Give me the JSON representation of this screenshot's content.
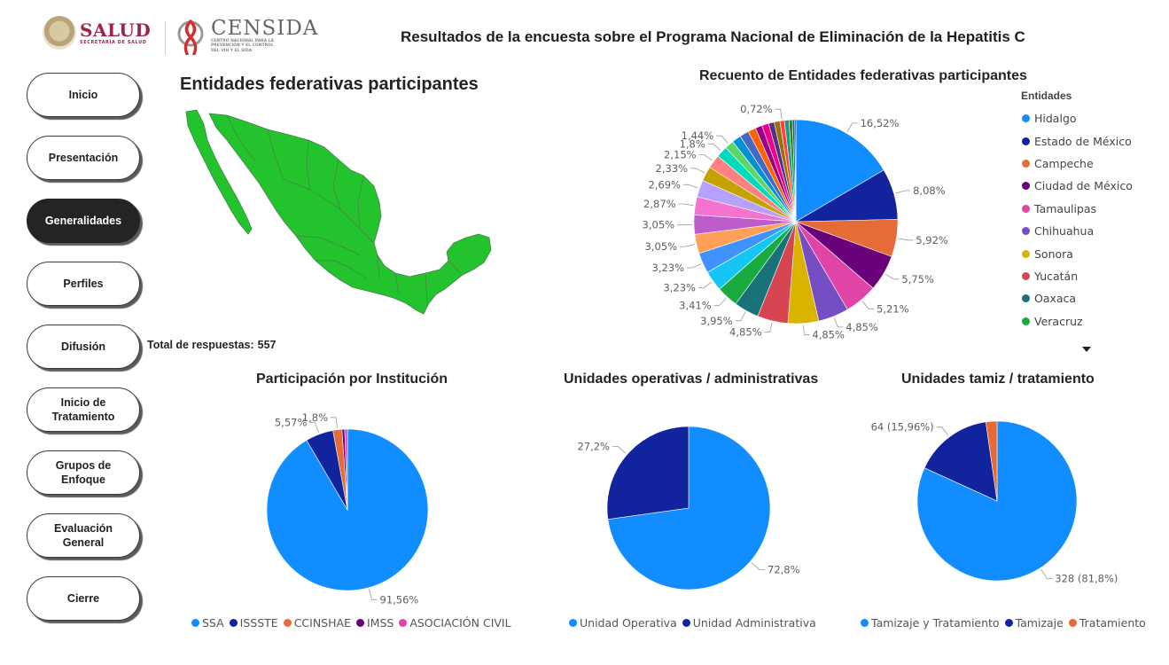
{
  "header": {
    "salud_logo": "SALUD",
    "salud_sub": "SECRETARÍA DE SALUD",
    "censida_logo": "CENSIDA",
    "censida_sub": "CENTRO NACIONAL PARA LA PREVENCIÓN Y EL CONTROL DEL VIH Y EL SIDA",
    "title": "Resultados de la encuesta sobre el Programa Nacional de Eliminación de la Hepatitis C"
  },
  "nav": {
    "items": [
      {
        "label": "Inicio",
        "active": false
      },
      {
        "label": "Presentación",
        "active": false
      },
      {
        "label": "Generalidades",
        "active": true
      },
      {
        "label": "Perfiles",
        "active": false
      },
      {
        "label": "Difusión",
        "active": false
      },
      {
        "label": "Inicio de Tratamiento",
        "active": false
      },
      {
        "label": "Grupos de Enfoque",
        "active": false
      },
      {
        "label": "Evaluación General",
        "active": false
      },
      {
        "label": "Cierre",
        "active": false
      }
    ]
  },
  "map": {
    "title": "Entidades federativas participantes",
    "fill_color": "#22c32c"
  },
  "total": {
    "label": "Total de respuestas:",
    "value": "557"
  },
  "chart_data": [
    {
      "type": "pie",
      "title": "Recuento de Entidades federativas participantes",
      "legend_title": "Entidades",
      "legend_visible": [
        "Hidalgo",
        "Estado de México",
        "Campeche",
        "Ciudad de México",
        "Tamaulipas",
        "Chihuahua",
        "Sonora",
        "Yucatán",
        "Oaxaca",
        "Veracruz"
      ],
      "categories": [
        "Hidalgo",
        "Estado de México",
        "Campeche",
        "Ciudad de México",
        "Tamaulipas",
        "Chihuahua",
        "Sonora",
        "Yucatán",
        "Oaxaca",
        "Veracruz",
        "",
        "",
        "",
        "",
        "",
        "",
        "",
        "",
        "",
        "",
        "",
        "",
        "",
        "",
        "",
        "",
        "",
        "",
        "",
        "",
        "",
        ""
      ],
      "values": [
        16.52,
        8.08,
        5.92,
        5.75,
        5.21,
        4.85,
        4.85,
        4.85,
        3.95,
        3.41,
        3.23,
        3.23,
        3.05,
        3.05,
        2.87,
        2.69,
        2.33,
        2.15,
        1.8,
        1.44,
        1.44,
        1.44,
        1.26,
        1.08,
        1.08,
        0.9,
        0.9,
        0.72,
        0.72,
        0.54,
        0.36,
        0.18
      ],
      "labels": [
        "16,52%",
        "8,08%",
        "5,92%",
        "5,75%",
        "5,21%",
        "4,85%",
        "4,85%",
        "4,85%",
        "3,95%",
        "3,41%",
        "3,23%",
        "3,23%",
        "3,05%",
        "3,05%",
        "2,87%",
        "2,69%",
        "2,33%",
        "2,15%",
        "1,8%",
        "1,44%",
        "",
        "",
        "",
        "",
        "",
        "",
        "",
        "0,72%",
        "",
        "",
        "",
        ""
      ],
      "colors": [
        "#118dff",
        "#12239e",
        "#e66c37",
        "#6b007b",
        "#e044a7",
        "#744ec2",
        "#d9b300",
        "#d64550",
        "#197278",
        "#1aab40",
        "#15c6f4",
        "#4092ff",
        "#ffa058",
        "#be5dc9",
        "#f472d0",
        "#b5a1ff",
        "#c4a200",
        "#ff8080",
        "#00dbbc",
        "#5bd667",
        "#0091d5",
        "#4668c5",
        "#ff6300",
        "#99008a",
        "#ec008c",
        "#533285",
        "#99700a",
        "#ff4141",
        "#1f9a85",
        "#25891c",
        "#0057a2",
        "#002050"
      ]
    },
    {
      "type": "pie",
      "title": "Participación por Institución",
      "categories": [
        "SSA",
        "ISSSTE",
        "CCINSHAE",
        "IMSS",
        "ASOCIACIÓN CIVIL"
      ],
      "values": [
        91.56,
        5.57,
        1.8,
        0.54,
        0.54
      ],
      "labels": [
        "91,56%",
        "5,57%",
        "1,8%",
        "",
        ""
      ],
      "colors": [
        "#118dff",
        "#12239e",
        "#e66c37",
        "#6b007b",
        "#e044a7"
      ]
    },
    {
      "type": "pie",
      "title": "Unidades operativas / administrativas",
      "categories": [
        "Unidad Operativa",
        "Unidad Administrativa"
      ],
      "values": [
        72.8,
        27.2
      ],
      "labels": [
        "72,8%",
        "27,2%"
      ],
      "colors": [
        "#118dff",
        "#12239e"
      ]
    },
    {
      "type": "pie",
      "title": "Unidades tamiz / tratamiento",
      "categories": [
        "Tamizaje y Tratamiento",
        "Tamizaje",
        "Tratamiento"
      ],
      "values": [
        81.8,
        15.96,
        2.24
      ],
      "labels": [
        "328 (81,8%)",
        "64 (15,96%)",
        ""
      ],
      "colors": [
        "#118dff",
        "#12239e",
        "#e66c37"
      ]
    }
  ]
}
